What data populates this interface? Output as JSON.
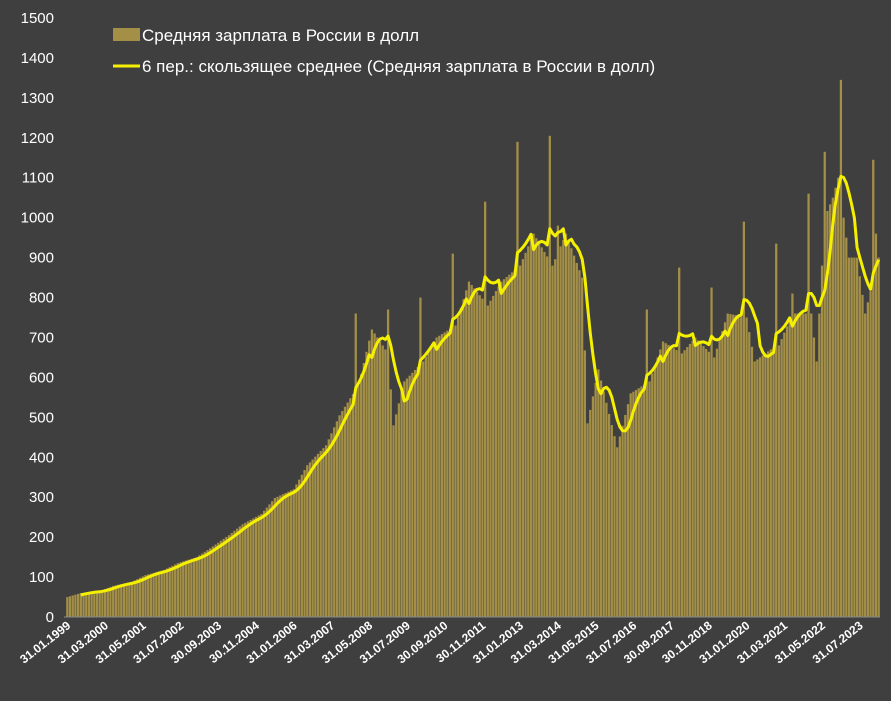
{
  "colors": {
    "background": "#3f3f3f",
    "bar": "#a48f47",
    "line": "#f4f000",
    "text": "#ffffff",
    "grid": "#4a4a4a"
  },
  "chart_data": {
    "type": "bar",
    "overlay": "line",
    "legend_position": "top-left",
    "grid": false,
    "ylim": [
      0,
      1500
    ],
    "y_ticks": [
      "0",
      "100",
      "200",
      "300",
      "400",
      "500",
      "600",
      "700",
      "800",
      "900",
      "1000",
      "1100",
      "1200",
      "1300",
      "1400",
      "1500"
    ],
    "x_start": "1999-01",
    "x_end": "2024-02",
    "x_ticks": [
      "31.01.1999",
      "31.03.2000",
      "31.05.2001",
      "31.07.2002",
      "30.09.2003",
      "30.11.2004",
      "31.01.2006",
      "31.03.2007",
      "31.05.2008",
      "31.07.2009",
      "30.09.2010",
      "30.11.2011",
      "31.01.2013",
      "31.03.2014",
      "31.05.2015",
      "31.07.2016",
      "30.09.2017",
      "30.11.2018",
      "31.01.2020",
      "31.03.2021",
      "31.05.2022",
      "31.07.2023"
    ],
    "series": [
      {
        "name": "Средняя зарплата в России в долл",
        "type": "bar",
        "frequency": "monthly",
        "anchors": [
          [
            "1999-01",
            50
          ],
          [
            "1999-06",
            60
          ],
          [
            "2000-01",
            65
          ],
          [
            "2000-06",
            78
          ],
          [
            "2001-01",
            88
          ],
          [
            "2001-06",
            105
          ],
          [
            "2002-01",
            118
          ],
          [
            "2002-06",
            135
          ],
          [
            "2003-01",
            150
          ],
          [
            "2003-06",
            172
          ],
          [
            "2004-01",
            205
          ],
          [
            "2004-06",
            232
          ],
          [
            "2005-01",
            258
          ],
          [
            "2005-06",
            298
          ],
          [
            "2006-01",
            320
          ],
          [
            "2006-06",
            380
          ],
          [
            "2007-01",
            430
          ],
          [
            "2007-06",
            505
          ],
          [
            "2008-01",
            580
          ],
          [
            "2008-06",
            720
          ],
          [
            "2008-12",
            660
          ],
          [
            "2009-02",
            480
          ],
          [
            "2009-06",
            590
          ],
          [
            "2010-01",
            640
          ],
          [
            "2010-06",
            700
          ],
          [
            "2011-01",
            730
          ],
          [
            "2011-06",
            840
          ],
          [
            "2012-01",
            780
          ],
          [
            "2012-06",
            840
          ],
          [
            "2013-01",
            880
          ],
          [
            "2013-06",
            960
          ],
          [
            "2014-01",
            880
          ],
          [
            "2014-06",
            960
          ],
          [
            "2014-12",
            850
          ],
          [
            "2015-02",
            485
          ],
          [
            "2015-06",
            620
          ],
          [
            "2016-01",
            425
          ],
          [
            "2016-06",
            560
          ],
          [
            "2017-01",
            590
          ],
          [
            "2017-06",
            690
          ],
          [
            "2018-01",
            660
          ],
          [
            "2018-06",
            700
          ],
          [
            "2019-01",
            650
          ],
          [
            "2019-06",
            760
          ],
          [
            "2020-01",
            750
          ],
          [
            "2020-04",
            640
          ],
          [
            "2020-10",
            670
          ],
          [
            "2021-01",
            680
          ],
          [
            "2021-06",
            760
          ],
          [
            "2022-01",
            760
          ],
          [
            "2022-03",
            640
          ],
          [
            "2022-06",
            1000
          ],
          [
            "2022-09",
            1050
          ],
          [
            "2022-11",
            1100
          ],
          [
            "2023-03",
            900
          ],
          [
            "2023-06",
            900
          ],
          [
            "2023-09",
            760
          ],
          [
            "2024-02",
            900
          ]
        ],
        "spikes": [
          [
            "2007-12",
            760
          ],
          [
            "2008-12",
            770
          ],
          [
            "2009-12",
            800
          ],
          [
            "2010-12",
            910
          ],
          [
            "2011-12",
            1040
          ],
          [
            "2012-12",
            1190
          ],
          [
            "2013-12",
            1205
          ],
          [
            "2014-03",
            980
          ],
          [
            "2016-12",
            770
          ],
          [
            "2017-12",
            875
          ],
          [
            "2018-12",
            825
          ],
          [
            "2019-12",
            990
          ],
          [
            "2020-12",
            935
          ],
          [
            "2021-06",
            810
          ],
          [
            "2021-12",
            1060
          ],
          [
            "2022-06",
            1165
          ],
          [
            "2022-12",
            1345
          ],
          [
            "2023-12",
            1145
          ],
          [
            "2024-01",
            960
          ]
        ]
      },
      {
        "name": "6 пер.: скользящее среднее (Средняя зарплата в России в долл)",
        "type": "line",
        "window": 6
      }
    ]
  }
}
